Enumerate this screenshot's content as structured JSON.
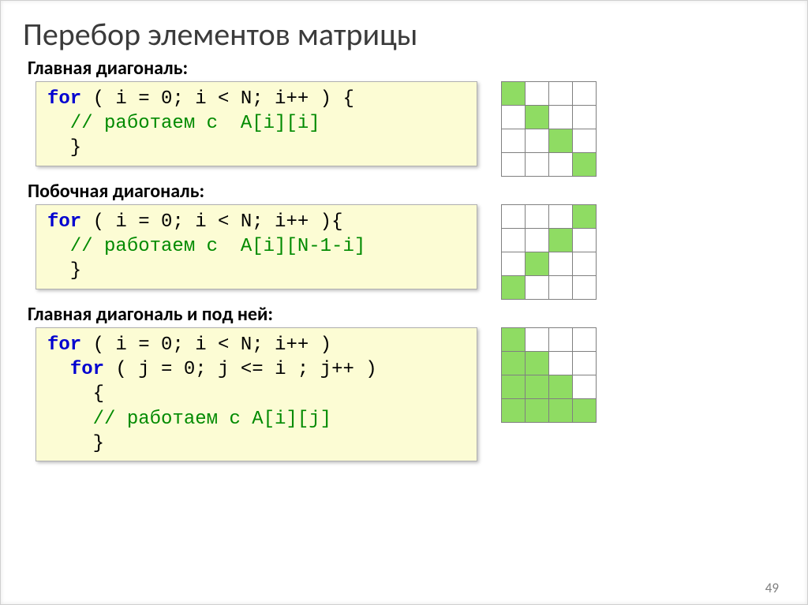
{
  "title": "Перебор элементов матрицы",
  "slide_number": "49",
  "colors": {
    "code_bg": "#fcfcd4",
    "kw_blue": "#0000d0",
    "kw_green": "#008a00",
    "cell_fill": "#8fdc63",
    "cell_border": "#808080"
  },
  "sections": [
    {
      "label": "Главная диагональ:",
      "code_lines": [
        [
          {
            "t": "for",
            "c": "kw-blue"
          },
          {
            "t": " ( i = 0; i < N; i++ ) {",
            "c": "txt-black"
          }
        ],
        [
          {
            "t": "  // работаем с  A[i][i]",
            "c": "kw-green"
          }
        ],
        [
          {
            "t": "  }",
            "c": "txt-black"
          }
        ]
      ],
      "code_width": 560,
      "grid": {
        "rows": 4,
        "cols": 4,
        "cell": 30,
        "fill": [
          [
            0,
            0
          ],
          [
            1,
            1
          ],
          [
            2,
            2
          ],
          [
            3,
            3
          ]
        ]
      }
    },
    {
      "label": "Побочная диагональ:",
      "code_lines": [
        [
          {
            "t": "for",
            "c": "kw-blue"
          },
          {
            "t": " ( i = 0; i < N; i++ ){",
            "c": "txt-black"
          }
        ],
        [
          {
            "t": "  // работаем с  A[i][N-1-i]",
            "c": "kw-green"
          }
        ],
        [
          {
            "t": "  }",
            "c": "txt-black"
          }
        ]
      ],
      "code_width": 560,
      "grid": {
        "rows": 4,
        "cols": 4,
        "cell": 30,
        "fill": [
          [
            0,
            3
          ],
          [
            1,
            2
          ],
          [
            2,
            1
          ],
          [
            3,
            0
          ]
        ]
      }
    },
    {
      "label": "Главная диагональ и под ней:",
      "code_lines": [
        [
          {
            "t": "for",
            "c": "kw-blue"
          },
          {
            "t": " ( i = 0; i < N; i++ ) ",
            "c": "txt-black"
          }
        ],
        [
          {
            "t": "  ",
            "c": "txt-black"
          },
          {
            "t": "for",
            "c": "kw-blue"
          },
          {
            "t": " ( j = 0; j <= i ; j++ )",
            "c": "txt-black"
          }
        ],
        [
          {
            "t": "    {",
            "c": "txt-black"
          }
        ],
        [
          {
            "t": "    // работаем с A[i][j]",
            "c": "kw-green"
          }
        ],
        [
          {
            "t": "    }",
            "c": "txt-black"
          }
        ]
      ],
      "code_width": 560,
      "grid": {
        "rows": 4,
        "cols": 4,
        "cell": 30,
        "fill": [
          [
            0,
            0
          ],
          [
            1,
            0
          ],
          [
            1,
            1
          ],
          [
            2,
            0
          ],
          [
            2,
            1
          ],
          [
            2,
            2
          ],
          [
            3,
            0
          ],
          [
            3,
            1
          ],
          [
            3,
            2
          ],
          [
            3,
            3
          ]
        ]
      }
    }
  ]
}
